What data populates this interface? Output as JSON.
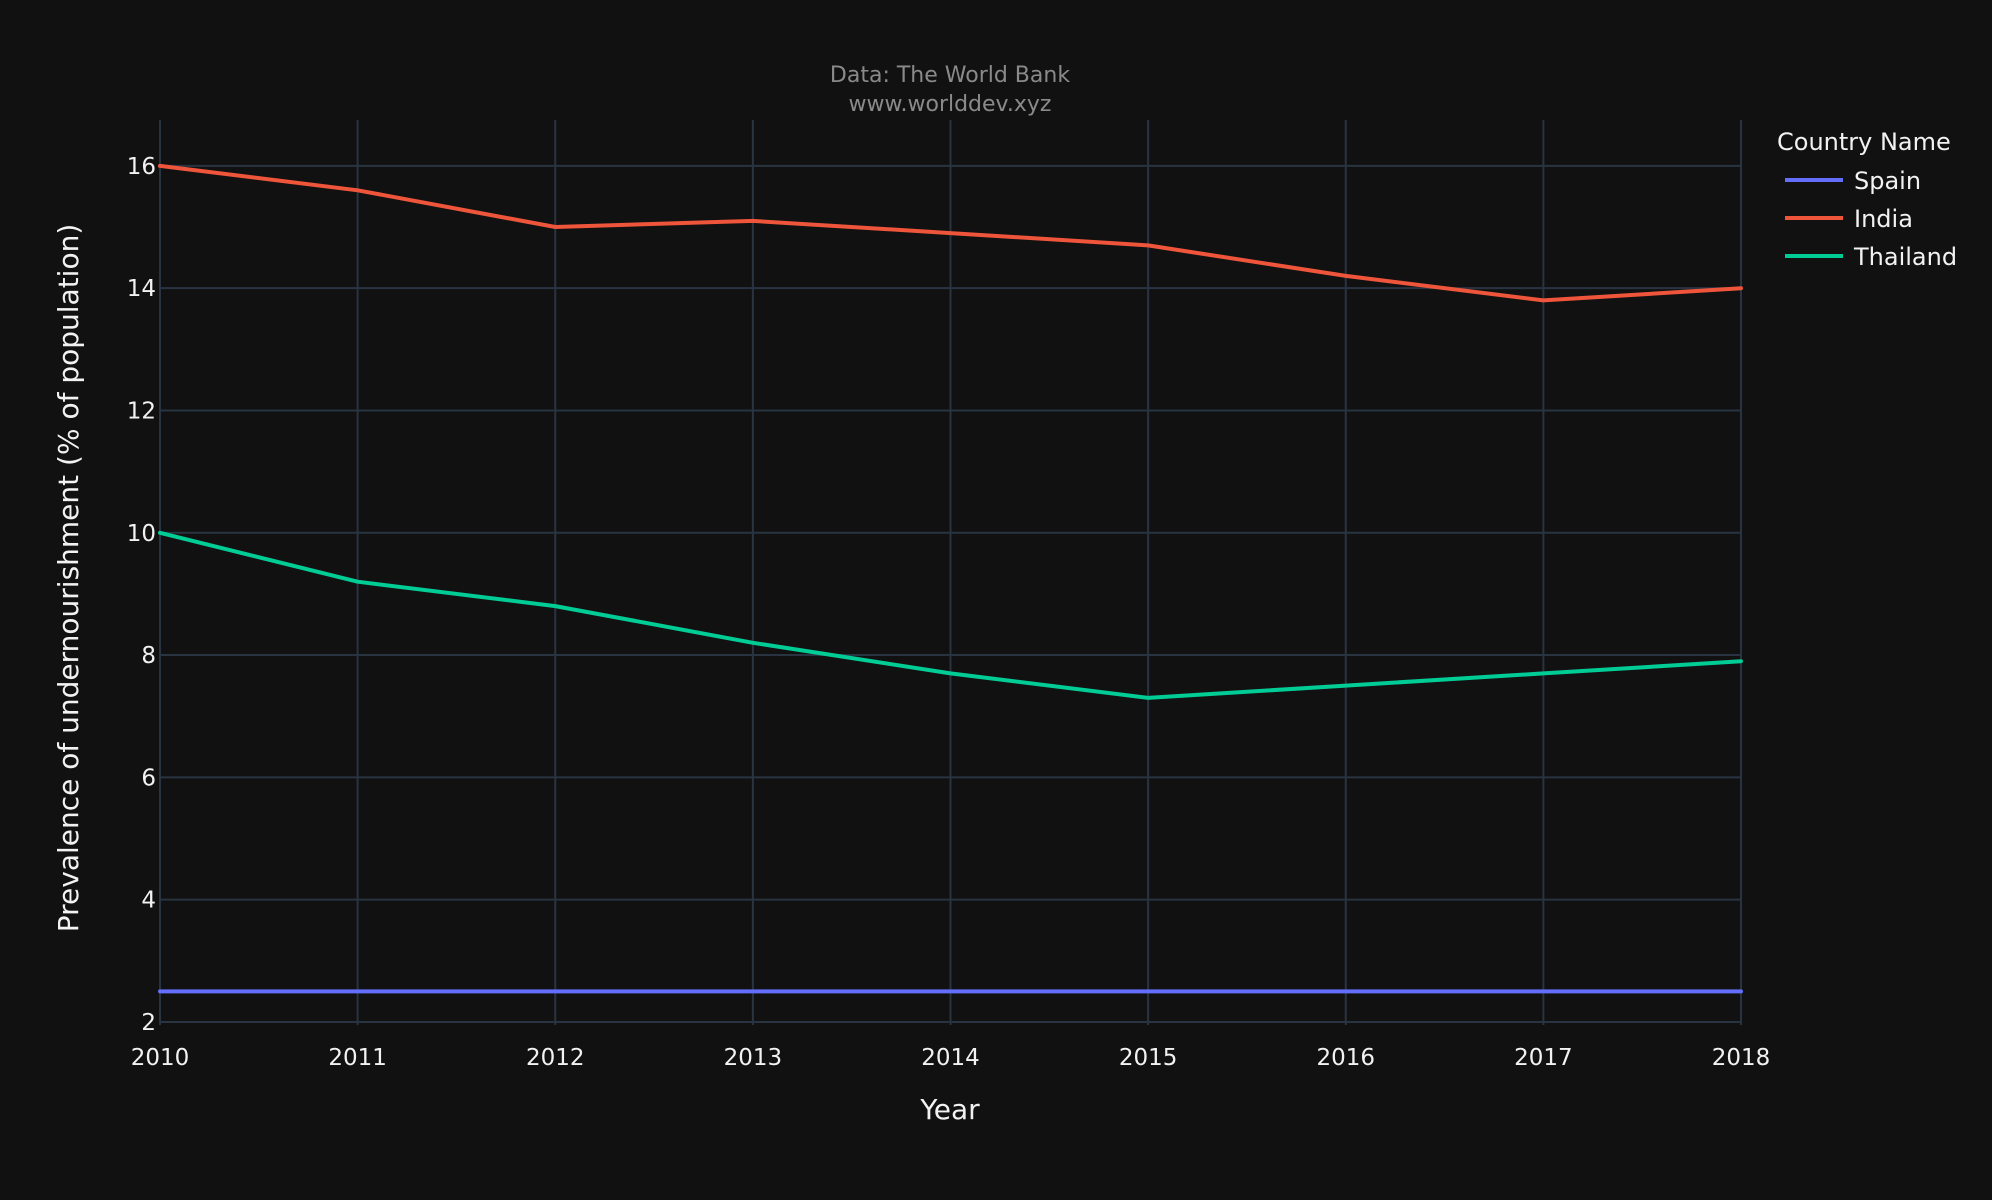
{
  "chart_data": {
    "type": "line",
    "title": "Data: The World Bank",
    "subtitle": "www.worlddev.xyz",
    "xlabel": "Year",
    "ylabel": "Prevalence of undernourishment (% of population)",
    "x": [
      2010,
      2011,
      2012,
      2013,
      2014,
      2015,
      2016,
      2017,
      2018
    ],
    "xlim": [
      2010,
      2018
    ],
    "ylim": [
      1.95,
      16.75
    ],
    "yticks": [
      2,
      4,
      6,
      8,
      10,
      12,
      14,
      16
    ],
    "grid": true,
    "legend_title": "Country Name",
    "legend_position": "top-right",
    "series": [
      {
        "name": "Spain",
        "color": "#636efa",
        "values": [
          2.5,
          2.5,
          2.5,
          2.5,
          2.5,
          2.5,
          2.5,
          2.5,
          2.5
        ]
      },
      {
        "name": "India",
        "color": "#ef553b",
        "values": [
          16.0,
          15.6,
          15.0,
          15.1,
          14.9,
          14.7,
          14.2,
          13.8,
          14.0
        ]
      },
      {
        "name": "Thailand",
        "color": "#00cc96",
        "values": [
          10.0,
          9.2,
          8.8,
          8.2,
          7.7,
          7.3,
          7.5,
          7.7,
          7.9
        ]
      }
    ]
  }
}
